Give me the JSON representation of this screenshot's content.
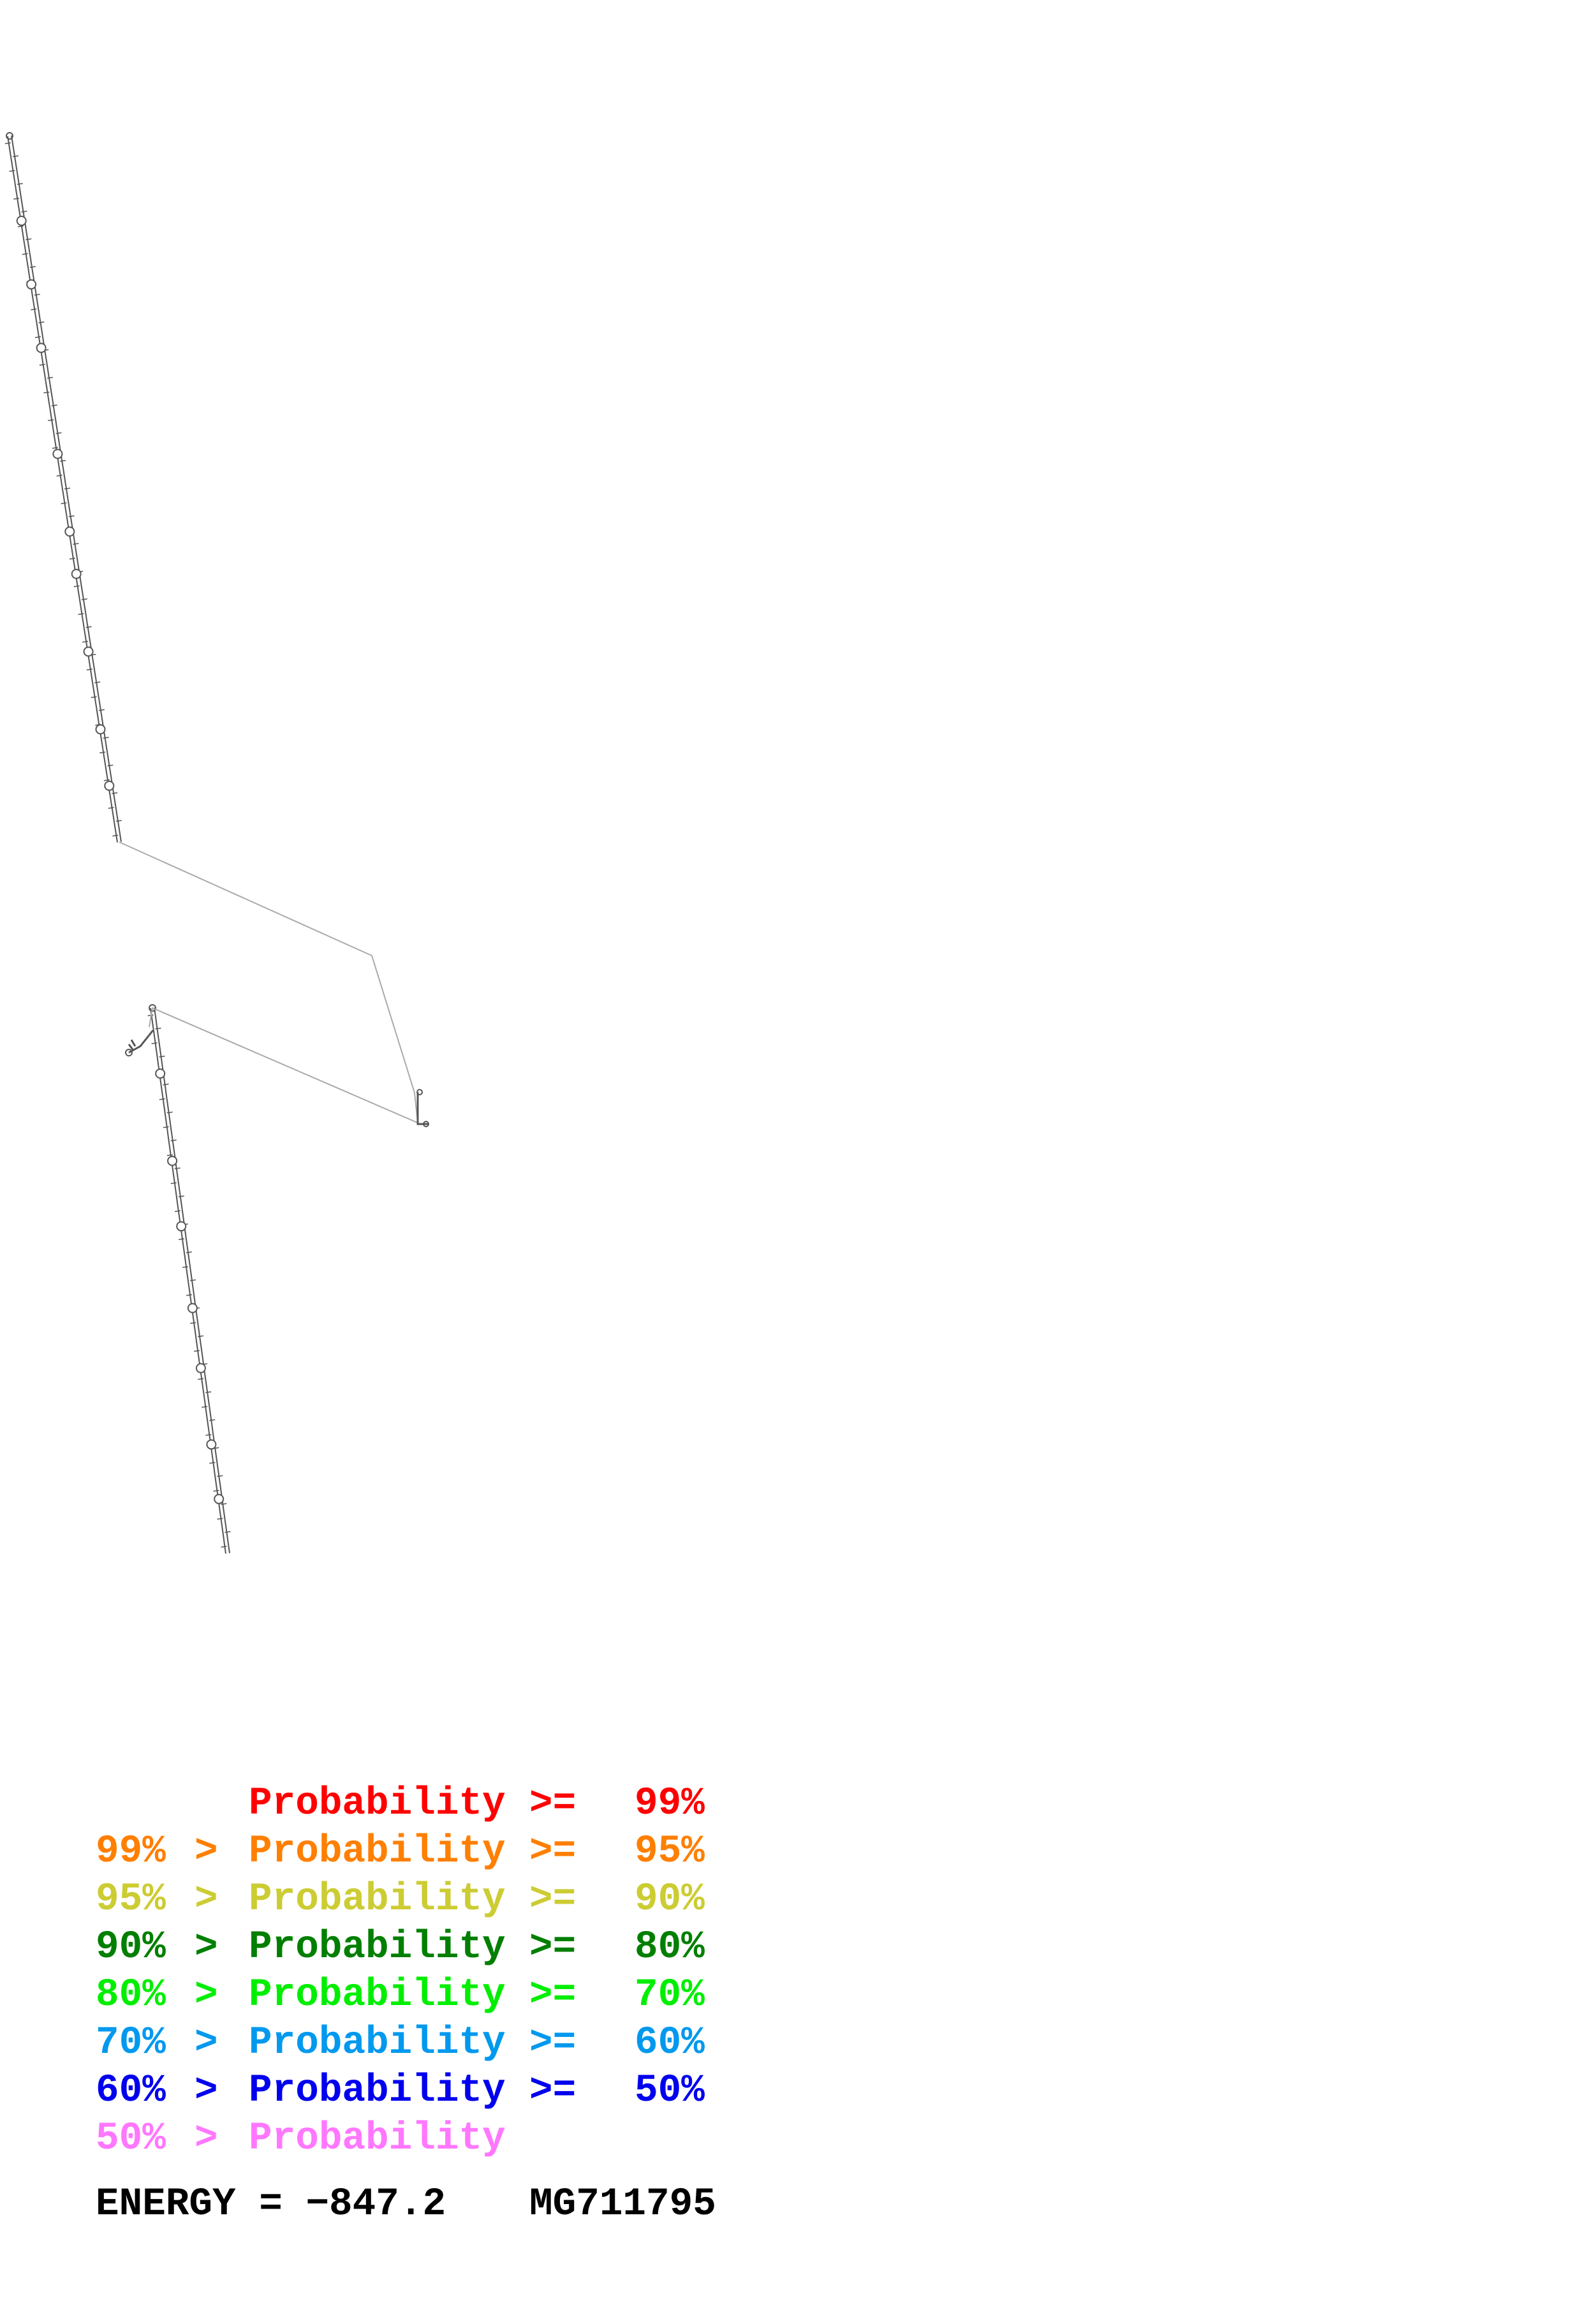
{
  "legend": [
    {
      "upper": "",
      "lower": "99%",
      "word": "Probability",
      "color": "#ff0000"
    },
    {
      "upper": "99%",
      "lower": "95%",
      "word": "Probability",
      "color": "#ff7f00"
    },
    {
      "upper": "95%",
      "lower": "90%",
      "word": "Probability",
      "color": "#cccc33"
    },
    {
      "upper": "90%",
      "lower": "80%",
      "word": "Probability",
      "color": "#007f00"
    },
    {
      "upper": "80%",
      "lower": "70%",
      "word": "Probability",
      "color": "#00ee00"
    },
    {
      "upper": "70%",
      "lower": "60%",
      "word": "Probability",
      "color": "#0099ee"
    },
    {
      "upper": "60%",
      "lower": "50%",
      "word": "Probability",
      "color": "#0000ee"
    },
    {
      "upper": "50%",
      "lower": "",
      "word": "Probability",
      "color": "#ff77ff"
    }
  ],
  "symbols": {
    "gt": ">",
    "ge": ">="
  },
  "footer": {
    "energy_label": "ENERGY = −847.2",
    "sequence_id": "MG711795"
  },
  "colors": {
    "backbone": "#555555",
    "connector": "#aaaaaa",
    "text": "#000000"
  }
}
